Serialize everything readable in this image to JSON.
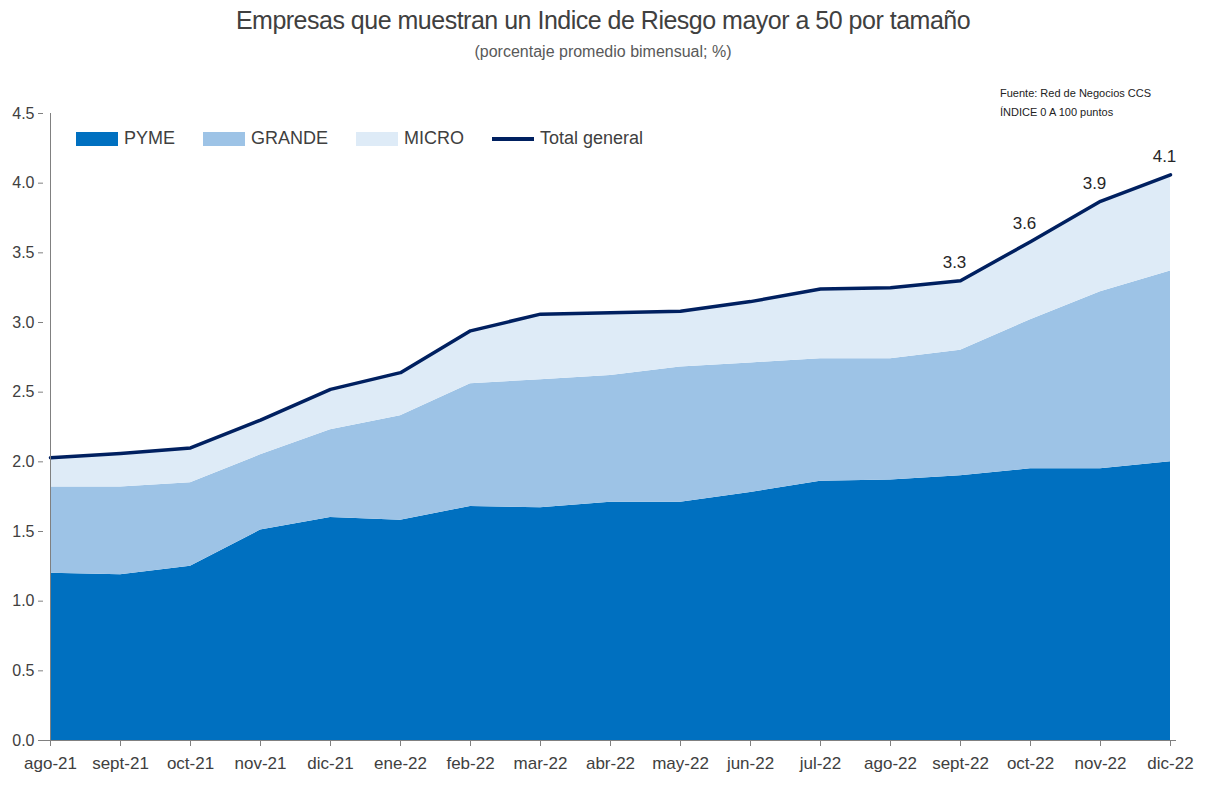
{
  "chart_data": {
    "type": "area",
    "title": "Empresas que muestran un Indice de Riesgo mayor a 50 por tamaño",
    "subtitle": "(porcentaje promedio bimensual; %)",
    "annotations": [
      "Fuente: Red de Negocios CCS",
      "ÍNDICE 0 A 100  puntos"
    ],
    "stacked": true,
    "legend": "top-left",
    "grid": false,
    "categories": [
      "ago-21",
      "sept-21",
      "oct-21",
      "nov-21",
      "dic-21",
      "ene-22",
      "feb-22",
      "mar-22",
      "abr-22",
      "may-22",
      "jun-22",
      "jul-22",
      "ago-22",
      "sept-22",
      "oct-22",
      "nov-22",
      "dic-22"
    ],
    "series": [
      {
        "name": "PYME",
        "type": "area",
        "color": "#0070c0",
        "values": [
          1.2,
          1.19,
          1.25,
          1.51,
          1.6,
          1.58,
          1.68,
          1.67,
          1.71,
          1.71,
          1.78,
          1.86,
          1.87,
          1.9,
          1.95,
          1.95,
          2.0
        ]
      },
      {
        "name": "GRANDE",
        "type": "area",
        "color": "#9dc3e6",
        "values": [
          0.62,
          0.63,
          0.6,
          0.54,
          0.63,
          0.75,
          0.88,
          0.92,
          0.91,
          0.97,
          0.93,
          0.88,
          0.87,
          0.9,
          1.07,
          1.27,
          1.37
        ]
      },
      {
        "name": "MICRO",
        "type": "area",
        "color": "#deebf7",
        "values": [
          0.21,
          0.24,
          0.25,
          0.25,
          0.29,
          0.31,
          0.38,
          0.47,
          0.45,
          0.4,
          0.44,
          0.5,
          0.51,
          0.5,
          0.56,
          0.65,
          0.69
        ]
      },
      {
        "name": "Total general",
        "type": "line",
        "color": "#002060",
        "data_labels": true,
        "values": [
          2.03,
          2.06,
          2.1,
          2.3,
          2.52,
          2.64,
          2.94,
          3.06,
          3.07,
          3.08,
          3.15,
          3.24,
          3.25,
          3.3,
          3.58,
          3.87,
          4.06
        ],
        "value_labels": [
          null,
          null,
          null,
          null,
          null,
          null,
          null,
          null,
          null,
          null,
          null,
          null,
          null,
          "3.3",
          "3.6",
          "3.9",
          "4.1"
        ]
      }
    ],
    "ylim": [
      0,
      4.5
    ],
    "yticks": [
      {
        "value": 0,
        "label": "0.0"
      },
      0.5,
      {
        "value": 1,
        "label": "1.0"
      },
      1.5,
      {
        "value": 2,
        "label": "2.0"
      },
      2.5,
      {
        "value": 3,
        "label": "3.0"
      },
      3.5,
      {
        "value": 4,
        "label": "4.0"
      },
      4.5
    ]
  }
}
